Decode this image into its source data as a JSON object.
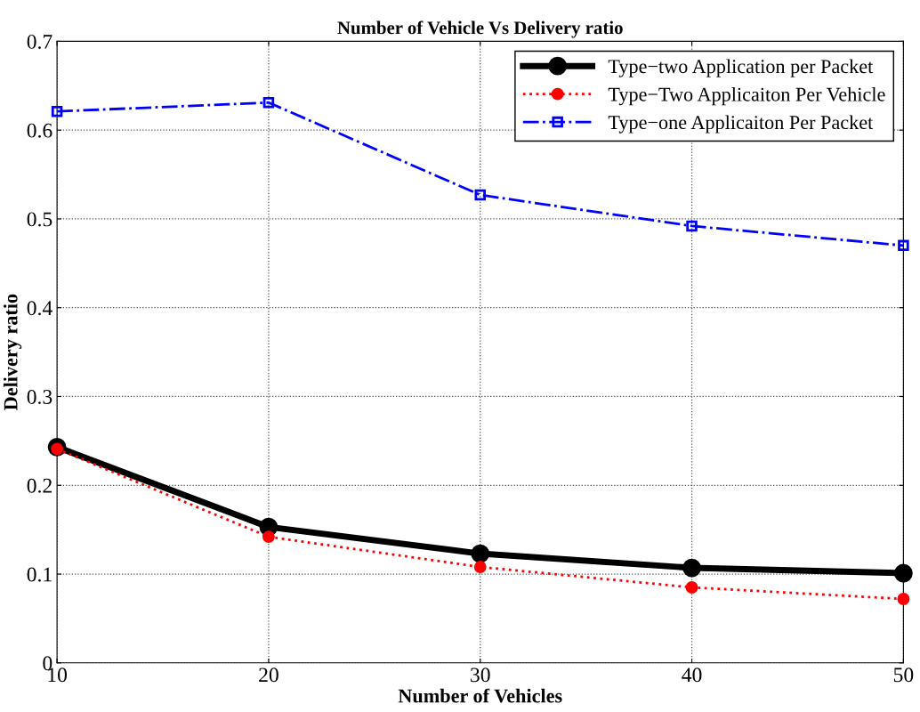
{
  "chart_data": {
    "type": "line",
    "title": "Number of Vehicle Vs Delivery ratio",
    "xlabel": "Number of Vehicles",
    "ylabel": "Delivery ratio",
    "x": [
      10,
      20,
      30,
      40,
      50
    ],
    "series": [
      {
        "name": "Type−two Application per Packet",
        "color": "#000000",
        "values": [
          0.243,
          0.153,
          0.123,
          0.107,
          0.101
        ],
        "marker": "circle",
        "line_style": "solid"
      },
      {
        "name": "Type−Two Applicaiton Per Vehicle",
        "color": "#ff0000",
        "values": [
          0.241,
          0.142,
          0.108,
          0.085,
          0.072
        ],
        "marker": "circle",
        "line_style": "dotted"
      },
      {
        "name": "Type−one Applicaiton Per Packet",
        "color": "#0000ff",
        "values": [
          0.621,
          0.631,
          0.527,
          0.492,
          0.47
        ],
        "marker": "square",
        "line_style": "dashdot"
      }
    ],
    "xlim": [
      10,
      50
    ],
    "xticks": [
      10,
      20,
      30,
      40,
      50
    ],
    "ylim": [
      0,
      0.7
    ],
    "yticks": [
      {
        "value": 0,
        "label": "0"
      },
      0.1,
      0.2,
      0.3,
      0.4,
      0.5,
      0.6,
      0.7
    ],
    "grid": true,
    "legend": "top right"
  }
}
